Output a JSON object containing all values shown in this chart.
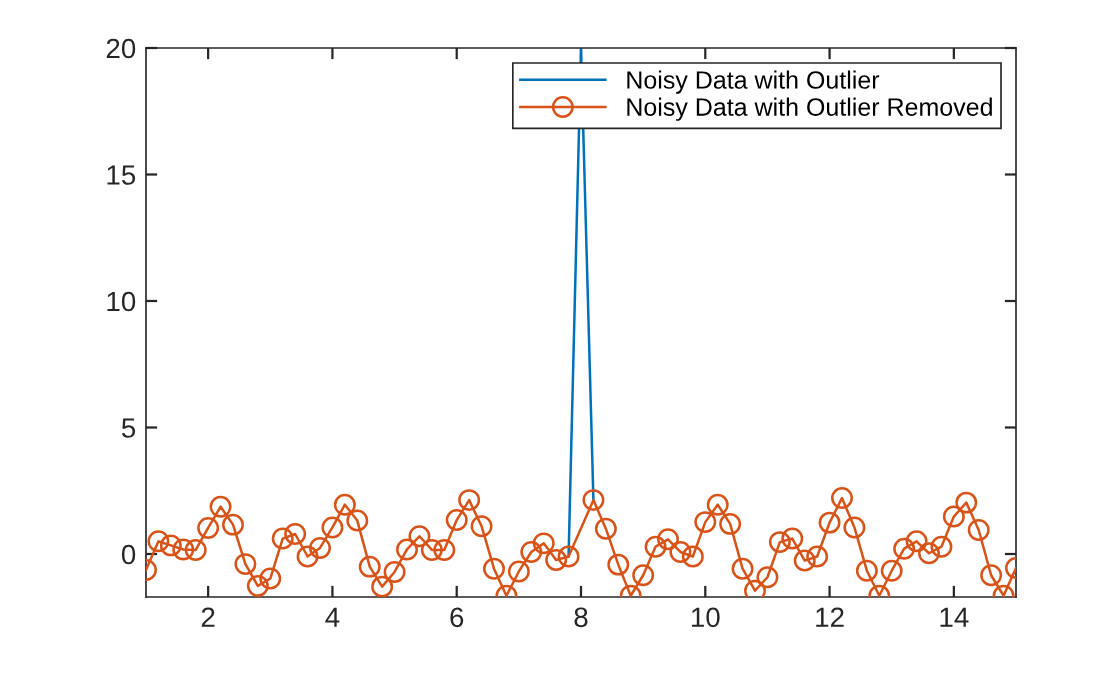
{
  "chart_data": {
    "type": "line",
    "series": [
      {
        "name": "Noisy Data with Outlier",
        "color": "#0072bd",
        "marker": "none",
        "x": [
          7.8,
          8,
          8.2
        ],
        "values": [
          -0.1,
          20,
          2.13
        ]
      },
      {
        "name": "Noisy Data with Outlier Removed",
        "color": "#d95319",
        "marker": "circle",
        "x": [
          1,
          1.2,
          1.4,
          1.6,
          1.8,
          2,
          2.2,
          2.4,
          2.6,
          2.8,
          3,
          3.2,
          3.4,
          3.6,
          3.8,
          4,
          4.2,
          4.4,
          4.6,
          4.8,
          5,
          5.2,
          5.4,
          5.6,
          5.8,
          6,
          6.2,
          6.4,
          6.6,
          6.8,
          7,
          7.2,
          7.4,
          7.6,
          7.8,
          8.2,
          8.4,
          8.6,
          8.8,
          9,
          9.2,
          9.4,
          9.6,
          9.8,
          10,
          10.2,
          10.4,
          10.6,
          10.8,
          11,
          11.2,
          11.4,
          11.6,
          11.8,
          12,
          12.2,
          12.4,
          12.6,
          12.8,
          13,
          13.2,
          13.4,
          13.6,
          13.8,
          14,
          14.2,
          14.4,
          14.6,
          14.8,
          15
        ],
        "values": [
          -0.63,
          0.5,
          0.34,
          0.18,
          0.16,
          1.03,
          1.87,
          1.16,
          -0.4,
          -1.26,
          -0.97,
          0.61,
          0.79,
          -0.1,
          0.24,
          1.05,
          1.95,
          1.32,
          -0.5,
          -1.29,
          -0.71,
          0.18,
          0.7,
          0.16,
          0.16,
          1.34,
          2.13,
          1.1,
          -0.58,
          -1.65,
          -0.69,
          0.08,
          0.42,
          -0.24,
          -0.1,
          2.13,
          1.0,
          -0.42,
          -1.65,
          -0.84,
          0.29,
          0.58,
          0.08,
          -0.1,
          1.26,
          1.95,
          1.19,
          -0.58,
          -1.45,
          -0.92,
          0.47,
          0.61,
          -0.26,
          -0.1,
          1.24,
          2.21,
          1.05,
          -0.66,
          -1.65,
          -0.66,
          0.21,
          0.5,
          0.03,
          0.29,
          1.48,
          2.03,
          0.95,
          -0.84,
          -1.65,
          -0.55
        ]
      }
    ],
    "xlim": [
      1,
      15
    ],
    "xticks": [
      2,
      4,
      6,
      8,
      10,
      12,
      14
    ],
    "ylim": [
      -1.7,
      20
    ],
    "yticks": [
      0,
      5,
      10,
      15,
      20
    ],
    "grid": false,
    "legend": "top right",
    "line_style": "solid"
  }
}
